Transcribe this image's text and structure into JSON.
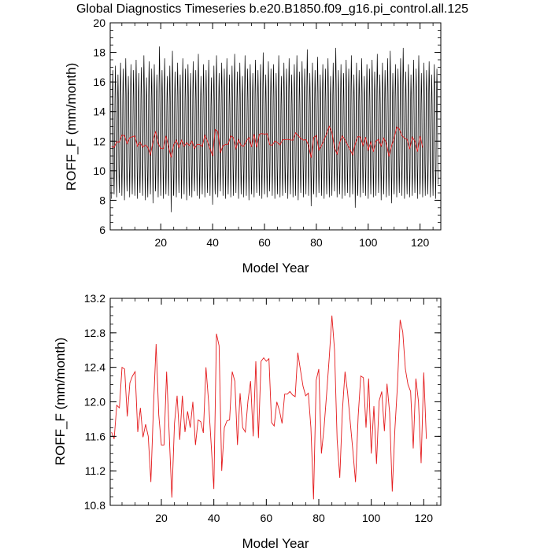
{
  "chart_data": [
    {
      "type": "line",
      "title": "Global Diagnostics Timeseries b.e20.B1850.f09_g16.pi_control.all.125",
      "xlabel": "Model Year",
      "ylabel": "ROFF_F (mm/month)",
      "xlim": [
        0.5,
        128
      ],
      "ylim": [
        6,
        20
      ],
      "xticks": [
        20,
        40,
        60,
        80,
        100,
        120
      ],
      "yticks": [
        6,
        8,
        10,
        12,
        14,
        16,
        18,
        20
      ],
      "ytick_labels": [
        "6",
        "8",
        "10",
        "12",
        "14",
        "16",
        "18",
        "20"
      ],
      "series": [
        {
          "id": "monthly",
          "color": "#000000",
          "description": "monthly values oscillating with an annual cycle; minima per year approx",
          "monthly_minima": [
            8.1,
            8.4,
            8.2,
            8.5,
            8.3,
            8.0,
            8.6,
            8.2,
            8.4,
            8.3,
            8.1,
            8.5,
            8.3,
            8.0,
            8.2,
            8.4,
            7.8,
            8.6,
            8.2,
            8.3,
            8.1,
            8.4,
            8.3,
            7.2,
            8.3,
            8.2,
            8.5,
            8.1,
            8.4,
            8.0,
            8.3,
            8.2,
            8.6,
            8.3,
            8.1,
            8.4,
            8.2,
            8.5,
            8.3,
            7.7,
            8.4,
            8.2,
            8.6,
            8.3,
            8.1,
            8.4,
            8.2,
            8.3,
            8.5,
            8.1,
            8.4,
            8.2,
            8.3,
            8.0,
            8.4,
            8.2,
            8.5,
            8.3,
            8.1,
            8.4,
            8.2,
            8.6,
            8.3,
            8.1,
            8.4,
            8.2,
            8.3,
            8.5,
            8.1,
            8.4,
            8.2,
            8.3,
            8.0,
            8.5,
            8.2,
            8.4,
            8.3,
            7.6,
            8.4,
            8.2,
            8.5,
            8.3,
            8.1,
            8.4,
            8.2,
            8.3,
            8.6,
            8.2,
            8.4,
            8.1,
            8.3,
            8.5,
            8.2,
            8.4,
            7.5,
            8.3,
            8.2,
            8.5,
            8.3,
            8.1,
            8.4,
            8.2,
            8.3,
            8.5,
            8.0,
            8.4,
            8.2,
            8.3,
            7.8,
            8.4,
            8.2,
            8.5,
            8.3,
            8.1,
            8.4,
            8.2,
            8.3,
            8.5,
            8.1,
            8.4,
            8.2,
            8.3,
            8.4,
            8.2,
            8.3,
            8.1
          ],
          "monthly_maxima": [
            16.8,
            17.1,
            16.5,
            17.3,
            16.9,
            17.6,
            16.4,
            17.2,
            16.8,
            17.5,
            16.6,
            17.0,
            17.8,
            16.3,
            17.4,
            16.9,
            17.2,
            16.5,
            18.4,
            16.8,
            17.6,
            16.4,
            17.1,
            18.1,
            16.7,
            17.3,
            16.5,
            17.6,
            16.9,
            17.2,
            16.6,
            17.4,
            16.8,
            17.9,
            16.4,
            17.2,
            16.8,
            17.5,
            16.3,
            17.1,
            17.8,
            16.6,
            17.3,
            16.9,
            17.6,
            16.5,
            17.1,
            17.9,
            16.7,
            17.3,
            16.4,
            17.8,
            16.9,
            17.2,
            16.6,
            17.5,
            16.8,
            17.2,
            18.0,
            16.5,
            17.4,
            16.9,
            17.2,
            16.6,
            17.8,
            16.4,
            17.3,
            16.9,
            17.6,
            16.5,
            17.2,
            17.8,
            16.7,
            17.4,
            16.9,
            18.2,
            16.6,
            17.3,
            16.8,
            17.7,
            16.5,
            17.2,
            16.9,
            17.6,
            16.4,
            17.3,
            18.3,
            16.8,
            17.2,
            16.6,
            17.5,
            16.9,
            17.8,
            16.5,
            17.3,
            16.8,
            17.6,
            16.4,
            17.2,
            16.9,
            17.5,
            16.7,
            17.9,
            16.5,
            17.3,
            16.8,
            17.6,
            18.1,
            16.6,
            17.2,
            16.9,
            17.6,
            18.3,
            16.7,
            17.2,
            16.5,
            17.5,
            16.9,
            17.8,
            16.6,
            17.3,
            16.8,
            17.4,
            16.5,
            17.2,
            16.9
          ]
        },
        {
          "id": "annual",
          "color": "#e41a1c",
          "x_start": 1,
          "x_step": 1,
          "values": [
            11.65,
            11.57,
            11.96,
            11.93,
            12.4,
            12.38,
            11.83,
            12.22,
            12.3,
            12.35,
            11.65,
            11.93,
            11.59,
            11.74,
            11.6,
            11.07,
            11.95,
            12.67,
            11.85,
            11.5,
            11.5,
            12.35,
            11.62,
            10.89,
            11.75,
            12.07,
            11.56,
            12.07,
            11.65,
            11.89,
            11.7,
            12.0,
            11.5,
            11.79,
            11.77,
            11.64,
            12.4,
            12.0,
            11.5,
            10.99,
            12.79,
            12.65,
            11.2,
            11.7,
            11.78,
            11.79,
            12.35,
            12.24,
            11.5,
            12.1,
            11.7,
            11.65,
            12.01,
            12.24,
            11.6,
            12.47,
            11.58,
            12.47,
            12.51,
            12.47,
            12.5,
            11.76,
            11.72,
            12.0,
            11.9,
            11.75,
            12.09,
            12.09,
            12.12,
            12.08,
            12.06,
            12.57,
            12.37,
            12.18,
            12.07,
            12.1,
            11.7,
            10.87,
            12.25,
            12.38,
            11.4,
            11.7,
            12.1,
            12.52,
            13.0,
            12.6,
            11.56,
            11.12,
            11.9,
            12.35,
            12.1,
            11.76,
            11.43,
            11.07,
            11.83,
            12.3,
            12.28,
            11.7,
            12.27,
            11.4,
            11.95,
            11.28,
            12.01,
            12.12,
            11.66,
            12.21,
            11.87,
            10.96,
            11.68,
            12.2,
            12.95,
            12.81,
            12.38,
            12.2,
            12.12,
            11.46,
            12.27,
            12.0,
            11.29,
            12.34,
            11.57
          ]
        }
      ]
    },
    {
      "type": "line",
      "title": "",
      "xlabel": "Model Year",
      "ylabel": "ROFF_F (mm/month)",
      "xlim": [
        0.5,
        126.5
      ],
      "ylim": [
        10.8,
        13.2
      ],
      "xticks": [
        20,
        40,
        60,
        80,
        100,
        120
      ],
      "yticks": [
        10.8,
        11.2,
        11.6,
        12.0,
        12.4,
        12.8,
        13.2
      ],
      "ytick_labels": [
        "10.8",
        "11.2",
        "11.6",
        "12.0",
        "12.4",
        "12.8",
        "13.2"
      ],
      "series": [
        {
          "id": "annual",
          "color": "#e41a1c",
          "x_start": 1,
          "x_step": 1,
          "values": [
            11.65,
            11.57,
            11.96,
            11.93,
            12.4,
            12.38,
            11.83,
            12.22,
            12.3,
            12.35,
            11.65,
            11.93,
            11.59,
            11.74,
            11.6,
            11.07,
            11.95,
            12.67,
            11.85,
            11.5,
            11.5,
            12.35,
            11.62,
            10.89,
            11.75,
            12.07,
            11.56,
            12.07,
            11.65,
            11.89,
            11.7,
            12.0,
            11.5,
            11.79,
            11.77,
            11.64,
            12.4,
            12.0,
            11.5,
            10.99,
            12.79,
            12.65,
            11.2,
            11.7,
            11.78,
            11.79,
            12.35,
            12.24,
            11.5,
            12.1,
            11.7,
            11.65,
            12.01,
            12.24,
            11.6,
            12.47,
            11.58,
            12.47,
            12.51,
            12.47,
            12.5,
            11.76,
            11.72,
            12.0,
            11.9,
            11.75,
            12.09,
            12.09,
            12.12,
            12.08,
            12.06,
            12.57,
            12.37,
            12.18,
            12.07,
            12.1,
            11.7,
            10.87,
            12.25,
            12.38,
            11.4,
            11.7,
            12.1,
            12.52,
            13.0,
            12.6,
            11.56,
            11.12,
            11.9,
            12.35,
            12.1,
            11.76,
            11.43,
            11.07,
            11.83,
            12.3,
            12.28,
            11.7,
            12.27,
            11.4,
            11.95,
            11.28,
            12.01,
            12.12,
            11.66,
            12.21,
            11.87,
            10.96,
            11.68,
            12.2,
            12.95,
            12.81,
            12.38,
            12.2,
            12.12,
            11.46,
            12.27,
            12.0,
            11.29,
            12.34,
            11.57
          ]
        }
      ]
    }
  ]
}
